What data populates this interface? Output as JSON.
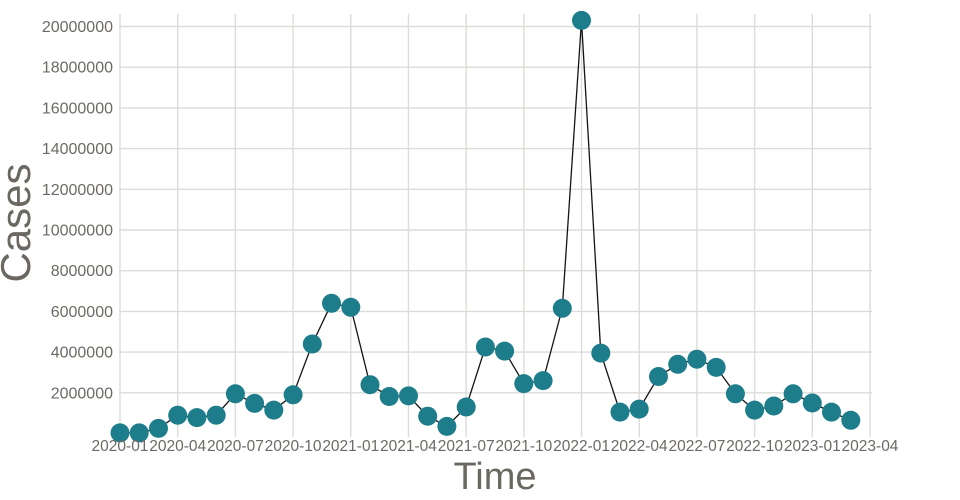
{
  "chart_data": {
    "type": "line",
    "title": "",
    "xlabel": "Time",
    "ylabel": "Cases",
    "x": [
      "2020-01",
      "2020-02",
      "2020-03",
      "2020-04",
      "2020-05",
      "2020-06",
      "2020-07",
      "2020-08",
      "2020-09",
      "2020-10",
      "2020-11",
      "2020-12",
      "2021-01",
      "2021-02",
      "2021-03",
      "2021-04",
      "2021-05",
      "2021-06",
      "2021-07",
      "2021-08",
      "2021-09",
      "2021-10",
      "2021-11",
      "2021-12",
      "2022-01",
      "2022-02",
      "2022-03",
      "2022-04",
      "2022-05",
      "2022-06",
      "2022-07",
      "2022-08",
      "2022-09",
      "2022-10",
      "2022-11",
      "2022-12",
      "2023-01",
      "2023-02",
      "2023-03"
    ],
    "values": [
      30000,
      30000,
      250000,
      900000,
      780000,
      900000,
      1950000,
      1480000,
      1150000,
      1900000,
      4400000,
      6400000,
      6200000,
      2400000,
      1820000,
      1850000,
      850000,
      350000,
      1300000,
      4250000,
      4050000,
      2450000,
      2600000,
      6150000,
      20300000,
      3950000,
      1050000,
      1200000,
      2800000,
      3400000,
      3650000,
      3250000,
      1950000,
      1150000,
      1350000,
      1950000,
      1500000,
      1050000,
      650000
    ],
    "x_tick_labels": [
      "2020-01",
      "2020-04",
      "2020-07",
      "2020-10",
      "2021-01",
      "2021-04",
      "2021-07",
      "2021-10",
      "2022-01",
      "2022-04",
      "2022-07",
      "2022-10",
      "2023-01",
      "2023-04"
    ],
    "y_tick_values": [
      2000000,
      4000000,
      6000000,
      8000000,
      10000000,
      12000000,
      14000000,
      16000000,
      18000000,
      20000000
    ],
    "y_tick_labels": [
      "2000000",
      "4000000",
      "6000000",
      "8000000",
      "10000000",
      "12000000",
      "14000000",
      "16000000",
      "18000000",
      "20000000"
    ],
    "xlim": [
      "2020-01",
      "2023-04"
    ],
    "ylim": [
      0,
      20700000
    ],
    "grid": true,
    "legend": "none",
    "colors": {
      "marker": "#1e7d8b",
      "line": "#141414",
      "grid": "#dcdcd8",
      "tick_text": "#6d6a64",
      "axis_title_text": "#6b6862",
      "background": "#ffffff"
    }
  }
}
